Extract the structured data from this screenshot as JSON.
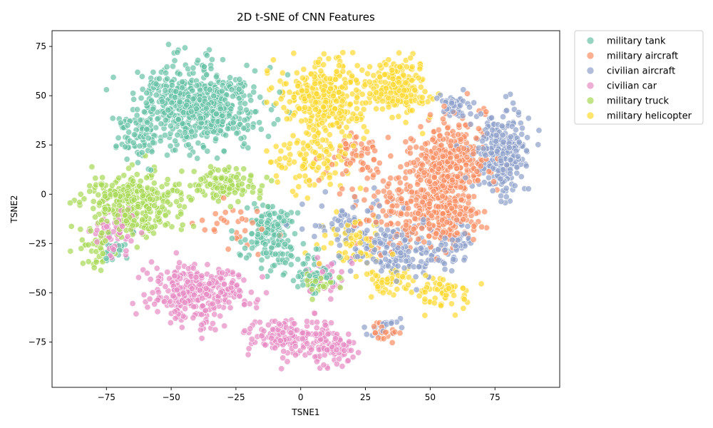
{
  "chart_data": {
    "type": "scatter",
    "title": "2D t-SNE of CNN Features",
    "xlabel": "TSNE1",
    "ylabel": "TSNE2",
    "xlim": [
      -96,
      100
    ],
    "ylim": [
      -98,
      83
    ],
    "xticks": [
      -75,
      -50,
      -25,
      0,
      25,
      50,
      75
    ],
    "yticks": [
      -75,
      -50,
      -25,
      0,
      25,
      50,
      75
    ],
    "grid": false,
    "legend_position": "outside-top-right",
    "marker_opacity": 0.7,
    "series": [
      {
        "name": "military tank",
        "color": "#66c2a5",
        "clusters": [
          {
            "center": [
              -40,
              45
            ],
            "spread": [
              15,
              13
            ],
            "count": 650
          },
          {
            "center": [
              -62,
              28
            ],
            "spread": [
              6,
              8
            ],
            "count": 70
          },
          {
            "center": [
              -12,
              -20
            ],
            "spread": [
              7,
              11
            ],
            "count": 170
          },
          {
            "center": [
              5,
              -38
            ],
            "spread": [
              6,
              8
            ],
            "count": 50
          },
          {
            "center": [
              -72,
              -30
            ],
            "spread": [
              4,
              6
            ],
            "count": 20
          }
        ]
      },
      {
        "name": "military aircraft",
        "color": "#fc8d62",
        "clusters": [
          {
            "center": [
              58,
              15
            ],
            "spread": [
              10,
              15
            ],
            "count": 360
          },
          {
            "center": [
              55,
              -12
            ],
            "spread": [
              9,
              10
            ],
            "count": 170
          },
          {
            "center": [
              38,
              -5
            ],
            "spread": [
              12,
              14
            ],
            "count": 140
          },
          {
            "center": [
              20,
              20
            ],
            "spread": [
              10,
              10
            ],
            "count": 60
          },
          {
            "center": [
              33,
              -70
            ],
            "spread": [
              4,
              4
            ],
            "count": 20
          },
          {
            "center": [
              -25,
              -15
            ],
            "spread": [
              10,
              8
            ],
            "count": 30
          }
        ]
      },
      {
        "name": "civilian aircraft",
        "color": "#8da0cb",
        "clusters": [
          {
            "center": [
              77,
              20
            ],
            "spread": [
              7,
              13
            ],
            "count": 280
          },
          {
            "center": [
              60,
              45
            ],
            "spread": [
              6,
              5
            ],
            "count": 40
          },
          {
            "center": [
              40,
              -30
            ],
            "spread": [
              12,
              10
            ],
            "count": 150
          },
          {
            "center": [
              20,
              -15
            ],
            "spread": [
              12,
              10
            ],
            "count": 80
          },
          {
            "center": [
              33,
              -68
            ],
            "spread": [
              4,
              4
            ],
            "count": 20
          },
          {
            "center": [
              60,
              -25
            ],
            "spread": [
              5,
              8
            ],
            "count": 40
          }
        ]
      },
      {
        "name": "civilian car",
        "color": "#e78ac3",
        "clusters": [
          {
            "center": [
              -40,
              -50
            ],
            "spread": [
              12,
              9
            ],
            "count": 330
          },
          {
            "center": [
              -5,
              -72
            ],
            "spread": [
              9,
              7
            ],
            "count": 140
          },
          {
            "center": [
              12,
              -78
            ],
            "spread": [
              6,
              7
            ],
            "count": 90
          },
          {
            "center": [
              -72,
              -20
            ],
            "spread": [
              6,
              8
            ],
            "count": 60
          },
          {
            "center": [
              10,
              -40
            ],
            "spread": [
              6,
              6
            ],
            "count": 30
          }
        ]
      },
      {
        "name": "military truck",
        "color": "#a6d854",
        "clusters": [
          {
            "center": [
              -65,
              -5
            ],
            "spread": [
              12,
              10
            ],
            "count": 330
          },
          {
            "center": [
              -30,
              5
            ],
            "spread": [
              10,
              6
            ],
            "count": 120
          },
          {
            "center": [
              -80,
              -28
            ],
            "spread": [
              4,
              6
            ],
            "count": 30
          },
          {
            "center": [
              10,
              -45
            ],
            "spread": [
              6,
              6
            ],
            "count": 25
          }
        ]
      },
      {
        "name": "military helicopter",
        "color": "#ffd92f",
        "clusters": [
          {
            "center": [
              10,
              50
            ],
            "spread": [
              11,
              12
            ],
            "count": 350
          },
          {
            "center": [
              38,
              55
            ],
            "spread": [
              8,
              10
            ],
            "count": 200
          },
          {
            "center": [
              5,
              18
            ],
            "spread": [
              10,
              10
            ],
            "count": 110
          },
          {
            "center": [
              55,
              -50
            ],
            "spread": [
              7,
              5
            ],
            "count": 60
          },
          {
            "center": [
              35,
              -45
            ],
            "spread": [
              6,
              5
            ],
            "count": 50
          },
          {
            "center": [
              20,
              -25
            ],
            "spread": [
              8,
              10
            ],
            "count": 60
          }
        ]
      }
    ]
  }
}
